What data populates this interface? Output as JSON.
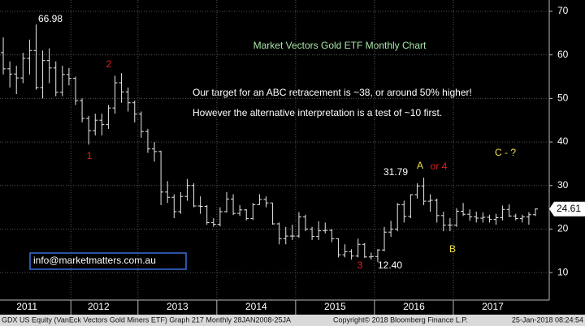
{
  "chart_data": {
    "type": "ohlc",
    "title": "Market Vectors Gold ETF Monthly Chart",
    "subtitle": [
      "Our target for an ABC retracement is ~38, or around 50% higher!",
      "However the alternative interpretation is a test of ~10 first."
    ],
    "annotations": [
      "66.98",
      "2",
      "1",
      "31.79",
      "A",
      "or 4",
      "C - ?",
      "B",
      "3",
      "12.40"
    ],
    "contact": "info@marketmatters.com.au",
    "color": "#e8e8e8",
    "categories": [
      null,
      null,
      null,
      null,
      null,
      null,
      null,
      null,
      null,
      null,
      null,
      null,
      null,
      null,
      null,
      null,
      null,
      null,
      null,
      null,
      null,
      null,
      null,
      null,
      null,
      null,
      null,
      null,
      null,
      null,
      null,
      null,
      null,
      null,
      null,
      null,
      null,
      null,
      null,
      null,
      null,
      null,
      null,
      null,
      null,
      null,
      null,
      null,
      null,
      null,
      null,
      null,
      null,
      null,
      null,
      null,
      null,
      null,
      null,
      null,
      null,
      null,
      null,
      null,
      null,
      null,
      null,
      null,
      null,
      null,
      null,
      null,
      null,
      null,
      null,
      null,
      null,
      null,
      null,
      null,
      null,
      null
    ],
    "open": [
      60.5,
      56.8,
      55.6,
      54.7,
      59.2,
      61.0,
      52.5,
      58.7,
      57.0,
      51.4,
      55.5,
      54.6,
      49.5,
      45.4,
      42.6,
      45.0,
      44.0,
      47.8,
      53.6,
      51.5,
      49.0,
      46.4,
      42.4,
      38.4,
      37.8,
      28.5,
      27.3,
      24.0,
      27.5,
      30.0,
      25.3,
      25.2,
      21.5,
      21.1,
      24.0,
      26.9,
      23.6,
      24.4,
      22.4,
      25.6,
      26.8,
      26.0,
      21.2,
      17.8,
      18.4,
      18.4,
      22.8,
      20.0,
      18.3,
      19.6,
      19.7,
      17.8,
      14.1,
      14.8,
      13.8,
      16.5,
      13.6,
      13.7,
      15.2,
      19.3,
      20.0,
      25.6,
      22.9,
      27.9,
      29.9,
      26.4,
      26.6,
      23.1,
      20.9,
      20.9,
      24.1,
      23.4,
      22.8,
      22.5,
      22.7,
      22.2,
      22.6,
      24.5,
      23.0,
      22.4,
      22.8,
      23.3
    ],
    "high": [
      64.0,
      58.5,
      57.5,
      60.5,
      63.5,
      66.98,
      61.0,
      61.5,
      58.5,
      57.5,
      57.0,
      55.0,
      50.0,
      46.0,
      46.5,
      46.5,
      48.5,
      55.2,
      55.8,
      52.5,
      49.5,
      47.0,
      43.0,
      40.0,
      38.0,
      31.0,
      28.0,
      28.5,
      31.5,
      30.5,
      27.5,
      25.5,
      22.5,
      25.0,
      28.5,
      28.0,
      25.5,
      24.6,
      26.0,
      28.0,
      27.5,
      26.0,
      21.5,
      20.5,
      21.0,
      23.9,
      23.3,
      20.5,
      21.8,
      21.5,
      20.0,
      17.9,
      16.5,
      15.4,
      17.8,
      16.8,
      14.6,
      15.4,
      20.5,
      21.9,
      26.0,
      26.5,
      28.0,
      30.5,
      31.79,
      28.0,
      27.0,
      24.0,
      22.5,
      24.8,
      26.0,
      24.5,
      24.0,
      23.8,
      23.3,
      23.5,
      25.4,
      25.7,
      23.5,
      23.3,
      23.9,
      24.8
    ],
    "low": [
      55.5,
      52.5,
      51.0,
      53.5,
      55.5,
      52.0,
      50.0,
      53.5,
      50.5,
      50.5,
      53.0,
      48.5,
      44.5,
      39.4,
      41.5,
      41.5,
      43.0,
      46.5,
      49.0,
      47.0,
      44.5,
      41.0,
      37.5,
      35.5,
      25.5,
      26.0,
      22.5,
      23.5,
      26.5,
      25.0,
      23.5,
      21.0,
      20.5,
      20.6,
      23.8,
      23.2,
      23.0,
      22.0,
      22.1,
      25.5,
      25.0,
      21.0,
      16.5,
      16.5,
      17.5,
      18.0,
      19.5,
      17.5,
      17.5,
      19.0,
      17.0,
      13.5,
      13.5,
      13.0,
      13.5,
      13.4,
      13.0,
      12.4,
      14.9,
      18.2,
      19.5,
      21.5,
      22.5,
      27.0,
      25.5,
      24.0,
      21.5,
      19.5,
      19.5,
      20.5,
      23.0,
      21.9,
      21.5,
      21.5,
      21.5,
      21.0,
      22.0,
      22.8,
      22.0,
      21.5,
      21.0,
      23.0
    ],
    "close": [
      56.8,
      55.6,
      54.7,
      59.2,
      61.0,
      52.5,
      58.7,
      57.0,
      51.4,
      55.5,
      54.6,
      49.5,
      45.4,
      42.6,
      45.0,
      44.0,
      47.8,
      53.6,
      51.5,
      49.0,
      46.4,
      42.4,
      38.4,
      37.8,
      28.5,
      27.3,
      24.0,
      27.5,
      30.0,
      25.3,
      25.2,
      21.5,
      21.1,
      24.0,
      26.9,
      23.6,
      24.4,
      22.4,
      25.6,
      26.8,
      26.0,
      21.2,
      17.8,
      18.4,
      18.4,
      22.8,
      20.0,
      18.3,
      19.6,
      19.7,
      17.8,
      14.1,
      14.8,
      13.8,
      16.5,
      13.6,
      13.7,
      15.2,
      19.3,
      20.0,
      25.6,
      22.9,
      27.9,
      29.9,
      26.4,
      26.6,
      23.1,
      20.9,
      20.9,
      24.1,
      23.4,
      22.8,
      22.5,
      22.7,
      22.2,
      22.6,
      24.5,
      23.0,
      22.4,
      22.8,
      23.3,
      24.61
    ],
    "xlim": [
      -0.5,
      83.1
    ],
    "xticks": [
      {
        "value": 3.6,
        "label": "2011"
      },
      {
        "value": 14.5,
        "label": "2012"
      },
      {
        "value": 26.5,
        "label": "2013"
      },
      {
        "value": 38.5,
        "label": "2014"
      },
      {
        "value": 50.5,
        "label": "2015"
      },
      {
        "value": 62.5,
        "label": "2016"
      },
      {
        "value": 74.5,
        "label": "2017"
      }
    ],
    "ylim": [
      3.7,
      72.6
    ],
    "yticks": [
      10,
      20,
      30,
      40,
      50,
      60,
      70
    ],
    "grid": true,
    "footer": {
      "left": "GDX US Equity (VanEck Vectors Gold Miners ETF) Graph 217  Monthly 28JAN2008-25JA",
      "center": "Copyright© 2018 Bloomberg Finance L.P.",
      "right": "25-Jan-2018 08:24:54"
    }
  }
}
